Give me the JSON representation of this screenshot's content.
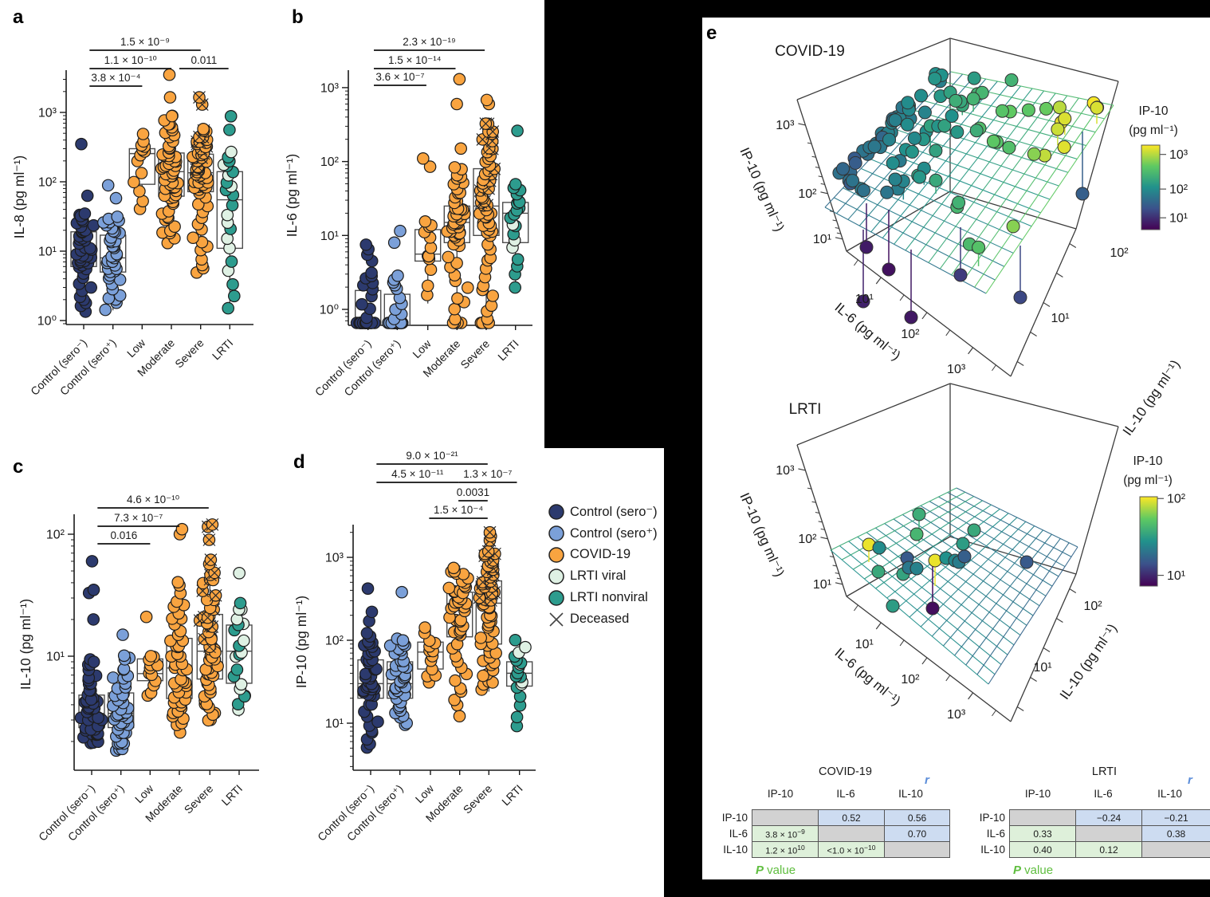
{
  "figure": {
    "panel_labels": {
      "a": "a",
      "b": "b",
      "c": "c",
      "d": "d",
      "e": "e"
    }
  },
  "colors": {
    "navy": "#2c3a6e",
    "blue": "#7ba0d9",
    "orange": "#f9a440",
    "mint": "#dff1e4",
    "teal": "#2d9c8e",
    "point_stroke": "#1c1c1c",
    "box_stroke": "#4d4d4d",
    "axis": "#1a1a1a",
    "table_gray": "#d2d2d2",
    "table_blue": "#cddcf1",
    "table_green": "#def0da",
    "r_blue": "#5b8dd9",
    "p_green": "#5fbe3f"
  },
  "legend": {
    "items": [
      {
        "label": "Control (sero⁻)",
        "marker": "circle",
        "color": "navy"
      },
      {
        "label": "Control (sero⁺)",
        "marker": "circle",
        "color": "blue"
      },
      {
        "label": "COVID-19",
        "marker": "circle",
        "color": "orange"
      },
      {
        "label": "LRTI viral",
        "marker": "circle",
        "color": "mint"
      },
      {
        "label": "LRTI nonviral",
        "marker": "circle",
        "color": "teal"
      },
      {
        "label": "Deceased",
        "marker": "x",
        "color": "#444"
      }
    ]
  },
  "chart_data": {
    "categories": [
      "Control (sero⁻)",
      "Control (sero⁺)",
      "Low",
      "Moderate",
      "Severe",
      "LRTI"
    ],
    "panels": [
      {
        "id": "a",
        "ylabel": "IL-8 (pg ml⁻¹)",
        "yticks": [
          {
            "label": "10⁰",
            "v": 1
          },
          {
            "label": "10¹",
            "v": 10
          },
          {
            "label": "10²",
            "v": 100
          },
          {
            "label": "10³",
            "v": 1000
          }
        ],
        "groups": [
          {
            "category": "Control (sero⁻)",
            "color": "navy",
            "n": 46,
            "box": {
              "lo": 1.25,
              "q1": 6,
              "med": 9.5,
              "q3": 19,
              "hi": 38
            },
            "outliers": [
              63,
              350
            ]
          },
          {
            "category": "Control (sero⁺)",
            "color": "blue",
            "n": 40,
            "box": {
              "lo": 1.4,
              "q1": 5,
              "med": 8,
              "q3": 17,
              "hi": 33
            },
            "outliers": [
              58,
              89
            ]
          },
          {
            "category": "Low",
            "color": "orange",
            "n": 13,
            "box": {
              "lo": 37,
              "q1": 92,
              "med": 255,
              "q3": 300,
              "hi": 420
            },
            "outliers": [
              490
            ]
          },
          {
            "category": "Moderate",
            "color": "orange",
            "n": 58,
            "box": {
              "lo": 13,
              "q1": 62,
              "med": 140,
              "q3": 260,
              "hi": 980
            },
            "outliers": [
              1650,
              3500
            ]
          },
          {
            "category": "Severe",
            "color": "orange",
            "n": 62,
            "box": {
              "lo": 4.2,
              "q1": 72,
              "med": 135,
              "q3": 250,
              "hi": 560
            },
            "outliers": [
              1300,
              1650
            ],
            "deceased": 0.32
          },
          {
            "category": "LRTI",
            "color": "mix",
            "n": 22,
            "box": {
              "lo": 1.3,
              "q1": 11,
              "med": 55,
              "q3": 140,
              "hi": 300
            },
            "outliers": [
              560,
              880
            ]
          }
        ],
        "pvalues": [
          {
            "label": "3.8 × 10⁻⁴",
            "from": 0.2,
            "to": 2,
            "level": 0
          },
          {
            "label": "1.1 × 10⁻¹⁰",
            "from": 0.2,
            "to": 3,
            "level": 1
          },
          {
            "label": "0.011",
            "from": 3.27,
            "to": 4.95,
            "level": 1
          },
          {
            "label": "1.5 × 10⁻⁹",
            "from": 0.2,
            "to": 4,
            "level": 2
          }
        ]
      },
      {
        "id": "b",
        "ylabel": "IL-6 (pg ml⁻¹)",
        "floor_value": 0.55,
        "yticks": [
          {
            "label": "10⁰",
            "v": 1
          },
          {
            "label": "10¹",
            "v": 10
          },
          {
            "label": "10²",
            "v": 100
          },
          {
            "label": "10³",
            "v": 1000
          }
        ],
        "groups": [
          {
            "category": "Control (sero⁻)",
            "color": "navy",
            "n": 40,
            "box": {
              "lo": 0.45,
              "q1": 0.45,
              "med": 0.62,
              "q3": 1.8,
              "hi": 3.4
            },
            "outliers": [
              4.5,
              5.5,
              6.5,
              7.5
            ],
            "floor_frac": 0.45
          },
          {
            "category": "Control (sero⁺)",
            "color": "blue",
            "n": 38,
            "box": {
              "lo": 0.45,
              "q1": 0.45,
              "med": 0.62,
              "q3": 1.6,
              "hi": 3.2
            },
            "outliers": [
              8,
              11.5
            ],
            "floor_frac": 0.45
          },
          {
            "category": "Low",
            "color": "orange",
            "n": 13,
            "box": {
              "lo": 1.2,
              "q1": 4.5,
              "med": 5.6,
              "q3": 12,
              "hi": 15
            },
            "outliers": [
              85,
              110
            ]
          },
          {
            "category": "Moderate",
            "color": "orange",
            "n": 55,
            "box": {
              "lo": 0.45,
              "q1": 8,
              "med": 15,
              "q3": 25,
              "hi": 90
            },
            "outliers": [
              150,
              600,
              1300
            ],
            "floor_frac": 0.04
          },
          {
            "category": "Severe",
            "color": "orange",
            "n": 60,
            "box": {
              "lo": 0.45,
              "q1": 10,
              "med": 25,
              "q3": 80,
              "hi": 350
            },
            "outliers": [
              600,
              680
            ],
            "floor_frac": 0.03,
            "deceased": 0.28
          },
          {
            "category": "LRTI",
            "color": "mix",
            "n": 20,
            "box": {
              "lo": 1.8,
              "q1": 8,
              "med": 20,
              "q3": 28,
              "hi": 55
            },
            "outliers": [
              260
            ]
          }
        ],
        "pvalues": [
          {
            "label": "3.6 × 10⁻⁷",
            "from": 0.2,
            "to": 2,
            "level": 0
          },
          {
            "label": "1.5 × 10⁻¹⁴",
            "from": 0.2,
            "to": 3,
            "level": 1
          },
          {
            "label": "2.3 × 10⁻¹⁹",
            "from": 0.2,
            "to": 4,
            "level": 2
          }
        ]
      },
      {
        "id": "c",
        "ylabel": "IL-10 (pg ml⁻¹)",
        "yticks": [
          {
            "label": "10¹",
            "v": 10
          },
          {
            "label": "10²",
            "v": 100
          }
        ],
        "groups": [
          {
            "category": "Control (sero⁻)",
            "color": "navy",
            "n": 48,
            "box": {
              "lo": 1.9,
              "q1": 2.6,
              "med": 3.4,
              "q3": 4.8,
              "hi": 9.8
            },
            "outliers": [
              20,
              33,
              35,
              60
            ]
          },
          {
            "category": "Control (sero⁺)",
            "color": "blue",
            "n": 46,
            "box": {
              "lo": 1.6,
              "q1": 2.6,
              "med": 3.4,
              "q3": 5,
              "hi": 10.5
            },
            "outliers": [
              15
            ]
          },
          {
            "category": "Low",
            "color": "orange",
            "n": 12,
            "box": {
              "lo": 4.3,
              "q1": 6.3,
              "med": 7.2,
              "q3": 9.5,
              "hi": 10.3
            },
            "outliers": [
              21
            ]
          },
          {
            "category": "Moderate",
            "color": "orange",
            "n": 50,
            "box": {
              "lo": 2.4,
              "q1": 4.5,
              "med": 8,
              "q3": 14,
              "hi": 40
            },
            "outliers": [
              100,
              110
            ]
          },
          {
            "category": "Severe",
            "color": "orange",
            "n": 55,
            "box": {
              "lo": 2.7,
              "q1": 6.5,
              "med": 11,
              "q3": 22,
              "hi": 60
            },
            "outliers": [
              90,
              115,
              120
            ],
            "deceased": 0.28
          },
          {
            "category": "LRTI",
            "color": "mix",
            "n": 20,
            "box": {
              "lo": 3.2,
              "q1": 6,
              "med": 11,
              "q3": 18,
              "hi": 28
            },
            "outliers": [
              48
            ]
          }
        ],
        "pvalues": [
          {
            "label": "0.016",
            "from": 0.2,
            "to": 2,
            "level": 0
          },
          {
            "label": "7.3 × 10⁻⁷",
            "from": 0.2,
            "to": 3,
            "level": 1
          },
          {
            "label": "4.6 × 10⁻¹⁰",
            "from": 0.2,
            "to": 4,
            "level": 2
          }
        ]
      },
      {
        "id": "d",
        "ylabel": "IP-10 (pg ml⁻¹)",
        "yticks": [
          {
            "label": "10¹",
            "v": 10
          },
          {
            "label": "10²",
            "v": 100
          },
          {
            "label": "10³",
            "v": 1000
          }
        ],
        "groups": [
          {
            "category": "Control (sero⁻)",
            "color": "navy",
            "n": 45,
            "box": {
              "lo": 4.5,
              "q1": 20,
              "med": 30,
              "q3": 58,
              "hi": 120
            },
            "outliers": [
              170,
              220,
              420
            ]
          },
          {
            "category": "Control (sero⁺)",
            "color": "blue",
            "n": 42,
            "box": {
              "lo": 9.5,
              "q1": 20,
              "med": 30,
              "q3": 55,
              "hi": 110
            },
            "outliers": [
              380
            ]
          },
          {
            "category": "Low",
            "color": "orange",
            "n": 13,
            "box": {
              "lo": 28,
              "q1": 45,
              "med": 72,
              "q3": 95,
              "hi": 140
            },
            "outliers": []
          },
          {
            "category": "Moderate",
            "color": "orange",
            "n": 50,
            "box": {
              "lo": 12,
              "q1": 110,
              "med": 250,
              "q3": 380,
              "hi": 800
            },
            "outliers": []
          },
          {
            "category": "Severe",
            "color": "orange",
            "n": 58,
            "box": {
              "lo": 24,
              "q1": 90,
              "med": 280,
              "q3": 520,
              "hi": 1300
            },
            "outliers": [
              1600,
              1800,
              2000
            ],
            "deceased": 0.38
          },
          {
            "category": "LRTI",
            "color": "mix",
            "n": 18,
            "box": {
              "lo": 8.5,
              "q1": 28,
              "med": 40,
              "q3": 55,
              "hi": 105
            },
            "outliers": []
          }
        ],
        "pvalues": [
          {
            "label": "1.5 × 10⁻⁴",
            "from": 2,
            "to": 4,
            "level": 0
          },
          {
            "label": "0.0031",
            "from": 3,
            "to": 4,
            "level": 1
          },
          {
            "label": "4.5 × 10⁻¹¹",
            "from": 0.2,
            "to": 3,
            "level": 2
          },
          {
            "label": "1.3 × 10⁻⁷",
            "from": 3,
            "to": 5,
            "level": 2
          },
          {
            "label": "9.0 × 10⁻²¹",
            "from": 0.2,
            "to": 4,
            "level": 3
          }
        ]
      }
    ],
    "plots3d": [
      {
        "title": "COVID-19",
        "type": "3d-scatter-regression-plane",
        "xlabel": "IL-6 (pg ml⁻¹)",
        "ylabel": "IL-10 (pg ml⁻¹)",
        "zlabel": "IP-10 (pg ml⁻¹)",
        "zticks": [
          "10³",
          "10²",
          "10¹"
        ],
        "il6_ticks": [
          "10¹",
          "10²",
          "10³"
        ],
        "il10_ticks": [
          "10²",
          "10¹"
        ],
        "n_points": 107,
        "colorbar": {
          "title": [
            "IP-10",
            "(pg ml⁻¹)"
          ],
          "ticks": [
            "10³",
            "10²",
            "10¹"
          ]
        }
      },
      {
        "title": "LRTI",
        "type": "3d-scatter-regression-plane",
        "xlabel": "IL-6 (pg ml⁻¹)",
        "ylabel": "IL-10 (pg ml⁻¹)",
        "zlabel": "IP-10 (pg ml⁻¹)",
        "zticks": [
          "10³",
          "10²",
          "10¹"
        ],
        "il6_ticks": [
          "10¹",
          "10²",
          "10³"
        ],
        "il10_ticks": [
          "10²",
          "10¹"
        ],
        "n_points": 19,
        "colorbar": {
          "title": [
            "IP-10",
            "(pg ml⁻¹)"
          ],
          "ticks": [
            "10²",
            "10¹"
          ]
        }
      }
    ],
    "tables": [
      {
        "title": "COVID-19",
        "r_label": "r",
        "p_label_italic": "P",
        "p_label_rest": " value",
        "col_headers": [
          "IP-10",
          "IL-6",
          "IL-10"
        ],
        "row_headers": [
          "IP-10",
          "IL-6",
          "IL-10"
        ],
        "cells": [
          [
            {
              "bg": "gray"
            },
            {
              "t": "0.52",
              "bg": "blue"
            },
            {
              "t": "0.56",
              "bg": "blue"
            }
          ],
          [
            {
              "t": "3.8 × 10",
              "sup": "−9",
              "bg": "green"
            },
            {
              "bg": "gray"
            },
            {
              "t": "0.70",
              "bg": "blue"
            }
          ],
          [
            {
              "t": "1.2 × 10",
              "sup": "10",
              "bg": "green"
            },
            {
              "t": "<1.0 × 10",
              "sup": "−10",
              "bg": "green"
            },
            {
              "bg": "gray"
            }
          ]
        ]
      },
      {
        "title": "LRTI",
        "r_label": "r",
        "p_label_italic": "P",
        "p_label_rest": " value",
        "col_headers": [
          "IP-10",
          "IL-6",
          "IL-10"
        ],
        "row_headers": [
          "IP-10",
          "IL-6",
          "IL-10"
        ],
        "cells": [
          [
            {
              "bg": "gray"
            },
            {
              "t": "−0.24",
              "bg": "blue"
            },
            {
              "t": "−0.21",
              "bg": "blue"
            }
          ],
          [
            {
              "t": "0.33",
              "bg": "green"
            },
            {
              "bg": "gray"
            },
            {
              "t": "0.38",
              "bg": "blue"
            }
          ],
          [
            {
              "t": "0.40",
              "bg": "green"
            },
            {
              "t": "0.12",
              "bg": "green"
            },
            {
              "bg": "gray"
            }
          ]
        ]
      }
    ]
  }
}
